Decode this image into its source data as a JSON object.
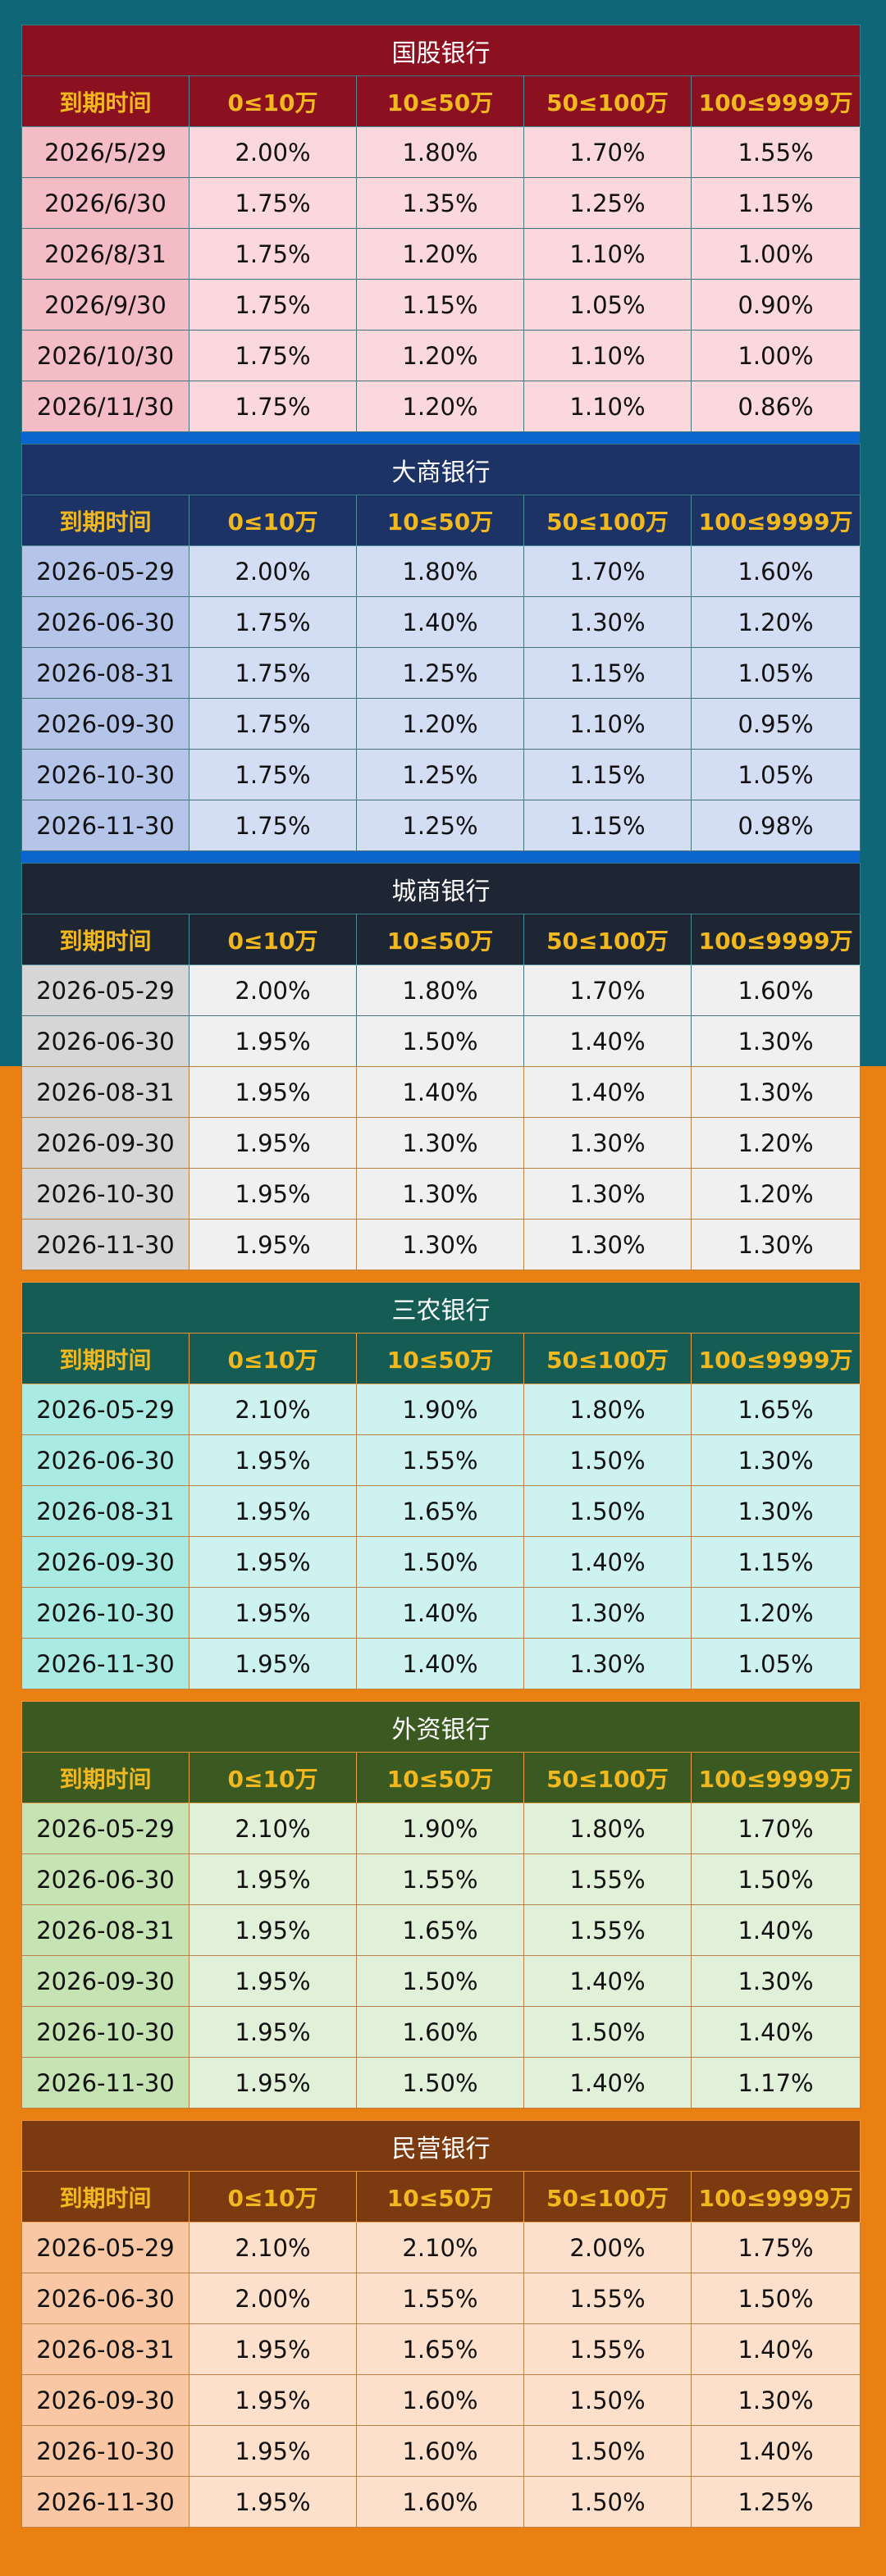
{
  "header_labels": [
    "到期时间",
    "0≤10万",
    "10≤50万",
    "50≤100万",
    "100≤9999万"
  ],
  "sections": [
    {
      "title": "国股银行",
      "colors": {
        "title_bg": "#8b1020",
        "header_bg": "#8b1020",
        "first_col_bg": "#f4bcc4",
        "cell_bg": "#fbd8de",
        "separator": "#0a66cc"
      },
      "rows": [
        [
          "2026/5/29",
          "2.00%",
          "1.80%",
          "1.70%",
          "1.55%"
        ],
        [
          "2026/6/30",
          "1.75%",
          "1.35%",
          "1.25%",
          "1.15%"
        ],
        [
          "2026/8/31",
          "1.75%",
          "1.20%",
          "1.10%",
          "1.00%"
        ],
        [
          "2026/9/30",
          "1.75%",
          "1.15%",
          "1.05%",
          "0.90%"
        ],
        [
          "2026/10/30",
          "1.75%",
          "1.20%",
          "1.10%",
          "1.00%"
        ],
        [
          "2026/11/30",
          "1.75%",
          "1.20%",
          "1.10%",
          "0.86%"
        ]
      ]
    },
    {
      "title": "大商银行",
      "colors": {
        "title_bg": "#1d3366",
        "header_bg": "#1d3366",
        "first_col_bg": "#b5c5ea",
        "cell_bg": "#d3ddf4",
        "separator": "#0a66cc"
      },
      "rows": [
        [
          "2026-05-29",
          "2.00%",
          "1.80%",
          "1.70%",
          "1.60%"
        ],
        [
          "2026-06-30",
          "1.75%",
          "1.40%",
          "1.30%",
          "1.20%"
        ],
        [
          "2026-08-31",
          "1.75%",
          "1.25%",
          "1.15%",
          "1.05%"
        ],
        [
          "2026-09-30",
          "1.75%",
          "1.20%",
          "1.10%",
          "0.95%"
        ],
        [
          "2026-10-30",
          "1.75%",
          "1.25%",
          "1.15%",
          "1.05%"
        ],
        [
          "2026-11-30",
          "1.75%",
          "1.25%",
          "1.15%",
          "0.98%"
        ]
      ]
    },
    {
      "title": "城商银行",
      "colors": {
        "title_bg": "#1f2633",
        "header_bg": "#1f2633",
        "first_col_bg": "#d6d6d6",
        "cell_bg": "#f0f0f0",
        "separator": "#ea8012"
      },
      "rows": [
        [
          "2026-05-29",
          "2.00%",
          "1.80%",
          "1.70%",
          "1.60%"
        ],
        [
          "2026-06-30",
          "1.95%",
          "1.50%",
          "1.40%",
          "1.30%"
        ],
        [
          "2026-08-31",
          "1.95%",
          "1.40%",
          "1.40%",
          "1.30%"
        ],
        [
          "2026-09-30",
          "1.95%",
          "1.30%",
          "1.30%",
          "1.20%"
        ],
        [
          "2026-10-30",
          "1.95%",
          "1.30%",
          "1.30%",
          "1.20%"
        ],
        [
          "2026-11-30",
          "1.95%",
          "1.30%",
          "1.30%",
          "1.30%"
        ]
      ]
    },
    {
      "title": "三农银行",
      "colors": {
        "title_bg": "#145c54",
        "header_bg": "#145c54",
        "first_col_bg": "#a9ebe2",
        "cell_bg": "#cdf2ef",
        "separator": "#ea8012"
      },
      "rows": [
        [
          "2026-05-29",
          "2.10%",
          "1.90%",
          "1.80%",
          "1.65%"
        ],
        [
          "2026-06-30",
          "1.95%",
          "1.55%",
          "1.50%",
          "1.30%"
        ],
        [
          "2026-08-31",
          "1.95%",
          "1.65%",
          "1.50%",
          "1.30%"
        ],
        [
          "2026-09-30",
          "1.95%",
          "1.50%",
          "1.40%",
          "1.15%"
        ],
        [
          "2026-10-30",
          "1.95%",
          "1.40%",
          "1.30%",
          "1.20%"
        ],
        [
          "2026-11-30",
          "1.95%",
          "1.40%",
          "1.30%",
          "1.05%"
        ]
      ]
    },
    {
      "title": "外资银行",
      "colors": {
        "title_bg": "#3a5a21",
        "header_bg": "#3a5a21",
        "first_col_bg": "#c6e3b3",
        "cell_bg": "#e1f0d8",
        "separator": "#ea8012"
      },
      "rows": [
        [
          "2026-05-29",
          "2.10%",
          "1.90%",
          "1.80%",
          "1.70%"
        ],
        [
          "2026-06-30",
          "1.95%",
          "1.55%",
          "1.55%",
          "1.50%"
        ],
        [
          "2026-08-31",
          "1.95%",
          "1.65%",
          "1.55%",
          "1.40%"
        ],
        [
          "2026-09-30",
          "1.95%",
          "1.50%",
          "1.40%",
          "1.30%"
        ],
        [
          "2026-10-30",
          "1.95%",
          "1.60%",
          "1.50%",
          "1.40%"
        ],
        [
          "2026-11-30",
          "1.95%",
          "1.50%",
          "1.40%",
          "1.17%"
        ]
      ]
    },
    {
      "title": "民营银行",
      "colors": {
        "title_bg": "#7c3a10",
        "header_bg": "#7c3a10",
        "first_col_bg": "#f9c7a4",
        "cell_bg": "#fde0cb",
        "separator": "#ea8012"
      },
      "rows": [
        [
          "2026-05-29",
          "2.10%",
          "2.10%",
          "2.00%",
          "1.75%"
        ],
        [
          "2026-06-30",
          "2.00%",
          "1.55%",
          "1.55%",
          "1.50%"
        ],
        [
          "2026-08-31",
          "1.95%",
          "1.65%",
          "1.55%",
          "1.40%"
        ],
        [
          "2026-09-30",
          "1.95%",
          "1.60%",
          "1.50%",
          "1.30%"
        ],
        [
          "2026-10-30",
          "1.95%",
          "1.60%",
          "1.50%",
          "1.40%"
        ],
        [
          "2026-11-30",
          "1.95%",
          "1.60%",
          "1.50%",
          "1.25%"
        ]
      ]
    }
  ]
}
